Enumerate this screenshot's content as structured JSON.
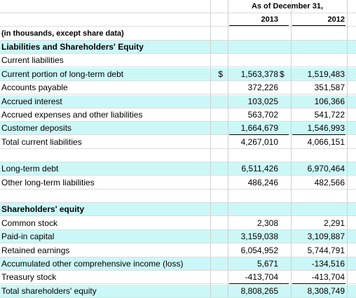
{
  "header": {
    "title": "As of December 31,",
    "years": [
      "2013",
      "2012"
    ]
  },
  "table": {
    "rows": [
      {
        "cells": [
          "(in thousands, except share data)",
          null,
          null,
          null,
          null
        ],
        "bold": true,
        "small": true
      },
      {
        "cells": [
          "Liabilities and Shareholders' Equity",
          null,
          null,
          null,
          null
        ],
        "bold": true,
        "highlight": true
      },
      {
        "cells": [
          "Current liabilities",
          null,
          null,
          null,
          null
        ]
      },
      {
        "cells": [
          "Current portion of long-term debt",
          "$",
          "1,563,378",
          "$",
          "1,519,483"
        ],
        "highlight": true
      },
      {
        "cells": [
          "Accounts payable",
          null,
          "372,226",
          null,
          "351,587"
        ]
      },
      {
        "cells": [
          "Accrued interest",
          null,
          "103,025",
          null,
          "106,366"
        ],
        "highlight": true
      },
      {
        "cells": [
          "Accrued expenses and other liabilities",
          null,
          "563,702",
          null,
          "541,722"
        ]
      },
      {
        "cells": [
          "Customer deposits",
          null,
          "1,664,679",
          null,
          "1,546,993"
        ],
        "highlight": true,
        "underline": true
      },
      {
        "cells": [
          "Total current liabilities",
          null,
          "4,267,010",
          null,
          "4,066,151"
        ]
      },
      {
        "cells": [
          null,
          null,
          null,
          null,
          null
        ]
      },
      {
        "cells": [
          "Long-term debt",
          null,
          "6,511,426",
          null,
          "6,970,464"
        ],
        "highlight": true
      },
      {
        "cells": [
          "Other long-term liabilities",
          null,
          "486,246",
          null,
          "482,566"
        ]
      },
      {
        "cells": [
          null,
          null,
          null,
          null,
          null
        ]
      },
      {
        "cells": [
          "Shareholders' equity",
          null,
          null,
          null,
          null
        ],
        "bold": true,
        "highlight": true
      },
      {
        "cells": [
          "Common stock",
          null,
          "2,308",
          null,
          "2,291"
        ]
      },
      {
        "cells": [
          "Paid-in capital",
          null,
          "3,159,038",
          null,
          "3,109,887"
        ],
        "highlight": true
      },
      {
        "cells": [
          "Retained earnings",
          null,
          "6,054,952",
          null,
          "5,744,791"
        ]
      },
      {
        "cells": [
          "Accumulated other comprehensive income (loss)",
          null,
          "5,671",
          null,
          "-134,516"
        ],
        "highlight": true
      },
      {
        "cells": [
          "Treasury stock",
          null,
          "-413,704",
          null,
          "-413,704"
        ],
        "underline": true
      },
      {
        "cells": [
          "Total shareholders' equity",
          null,
          "8,808,265",
          null,
          "8,308,749"
        ],
        "highlight": true
      }
    ]
  }
}
